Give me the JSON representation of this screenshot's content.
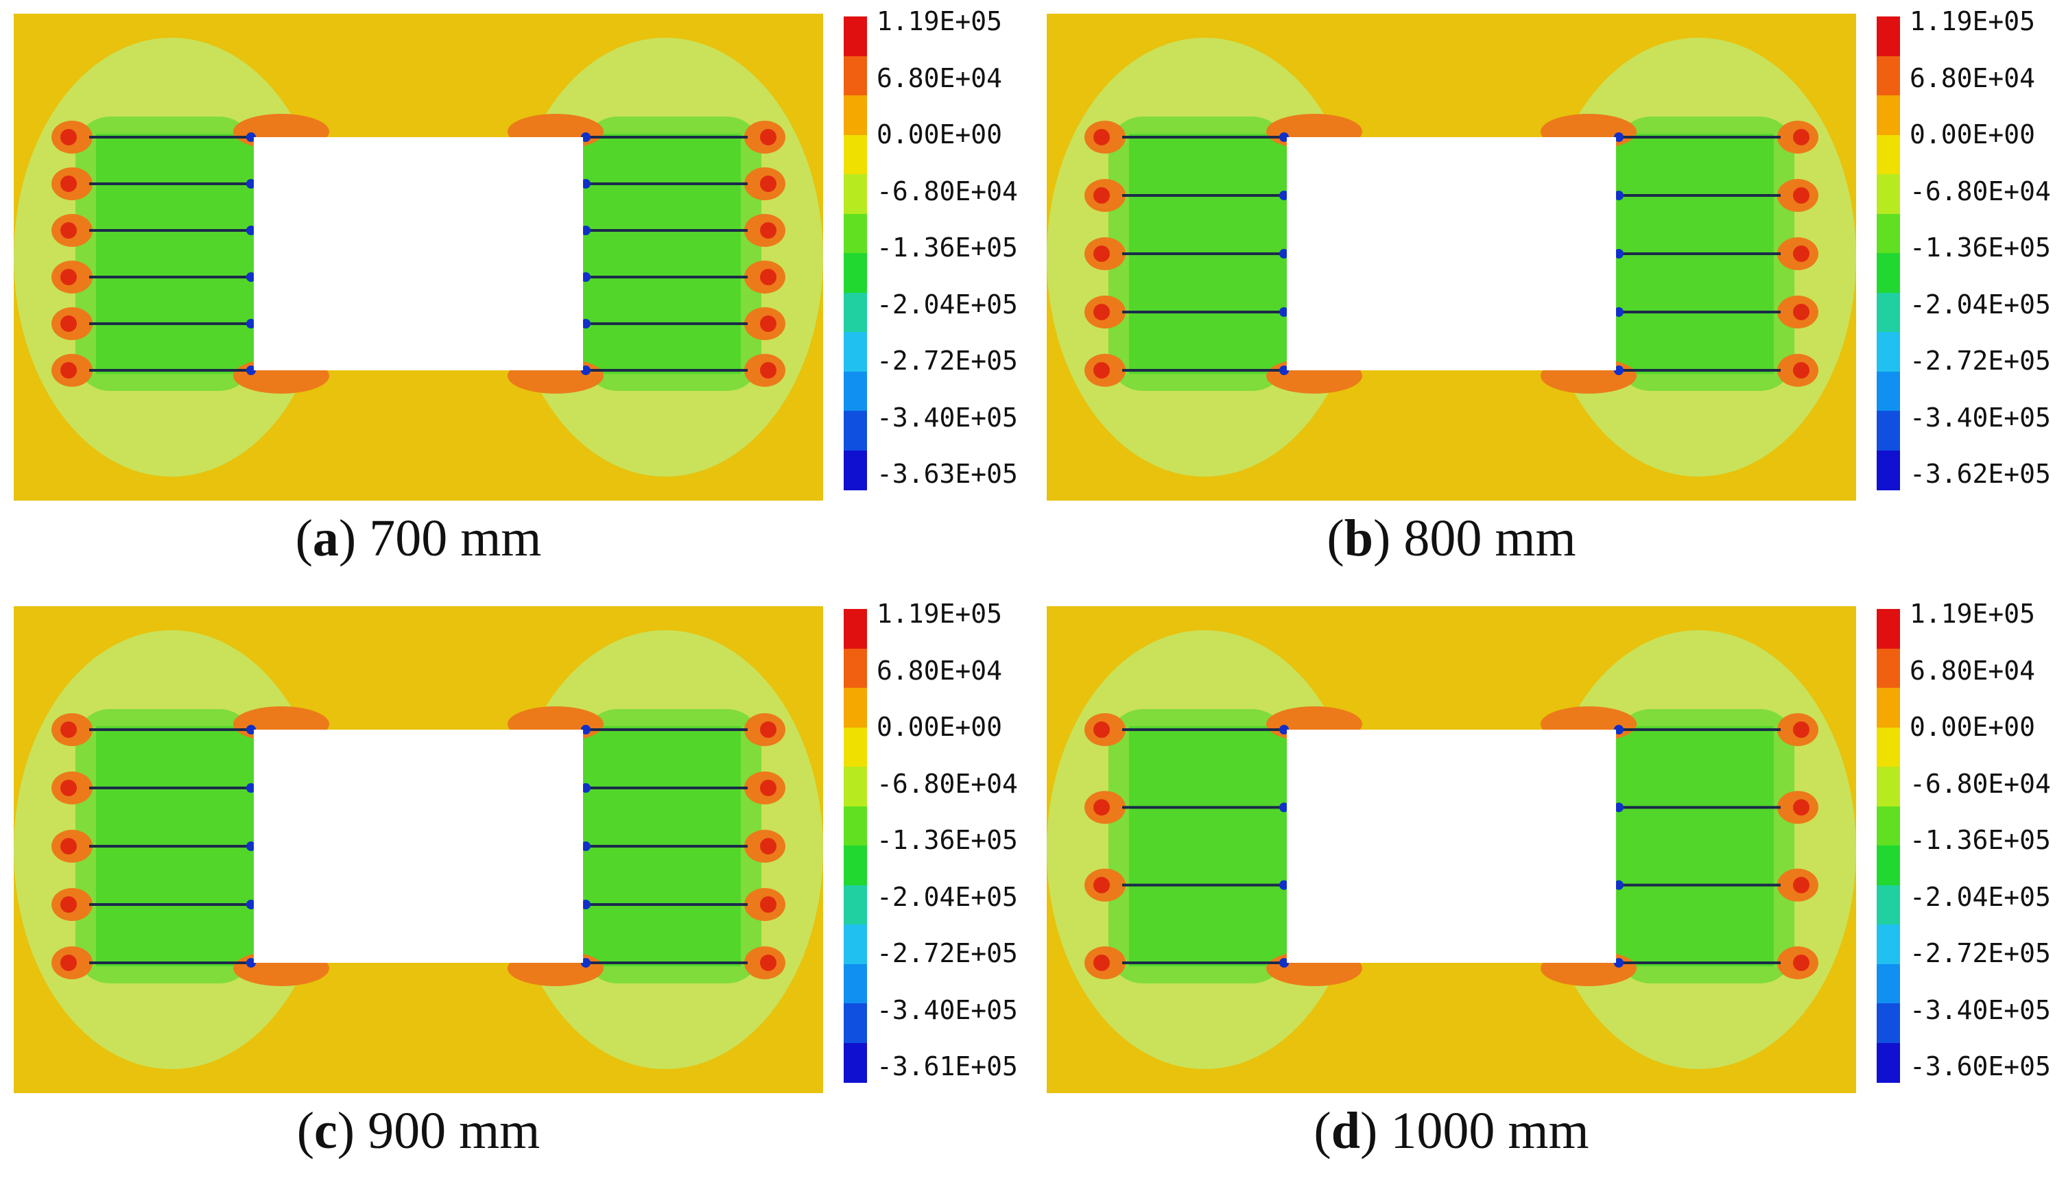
{
  "panels": [
    {
      "id": "a",
      "letter": "a",
      "label": "700 mm",
      "anchors": 6,
      "legend_values": [
        "1.19E+05",
        "6.80E+04",
        "0.00E+00",
        "-6.80E+04",
        "-1.36E+05",
        "-2.04E+05",
        "-2.72E+05",
        "-3.40E+05",
        "-3.63E+05"
      ]
    },
    {
      "id": "b",
      "letter": "b",
      "label": "800 mm",
      "anchors": 5,
      "legend_values": [
        "1.19E+05",
        "6.80E+04",
        "0.00E+00",
        "-6.80E+04",
        "-1.36E+05",
        "-2.04E+05",
        "-2.72E+05",
        "-3.40E+05",
        "-3.62E+05"
      ]
    },
    {
      "id": "c",
      "letter": "c",
      "label": "900 mm",
      "anchors": 5,
      "legend_values": [
        "1.19E+05",
        "6.80E+04",
        "0.00E+00",
        "-6.80E+04",
        "-1.36E+05",
        "-2.04E+05",
        "-2.72E+05",
        "-3.40E+05",
        "-3.61E+05"
      ]
    },
    {
      "id": "d",
      "letter": "d",
      "label": "1000 mm",
      "anchors": 4,
      "legend_values": [
        "1.19E+05",
        "6.80E+04",
        "0.00E+00",
        "-6.80E+04",
        "-1.36E+05",
        "-2.04E+05",
        "-2.72E+05",
        "-3.40E+05",
        "-3.60E+05"
      ]
    }
  ],
  "colors": {
    "background_field": "#e8c20c",
    "light_zone": "#c9e25a",
    "mid_zone": "#7fdc3a",
    "core_zone": "#52d62a",
    "tension": "#ec7a1a",
    "peak_tension": "#e02a10",
    "anchor_line": "#1b2a4a",
    "compression_tip": "#1030c8",
    "colorbar": [
      "#e01010",
      "#f06010",
      "#f4a800",
      "#f0e000",
      "#b8ea20",
      "#60e020",
      "#20d830",
      "#20d0a0",
      "#20c0f0",
      "#1090f0",
      "#1050e0",
      "#1010d0"
    ]
  }
}
